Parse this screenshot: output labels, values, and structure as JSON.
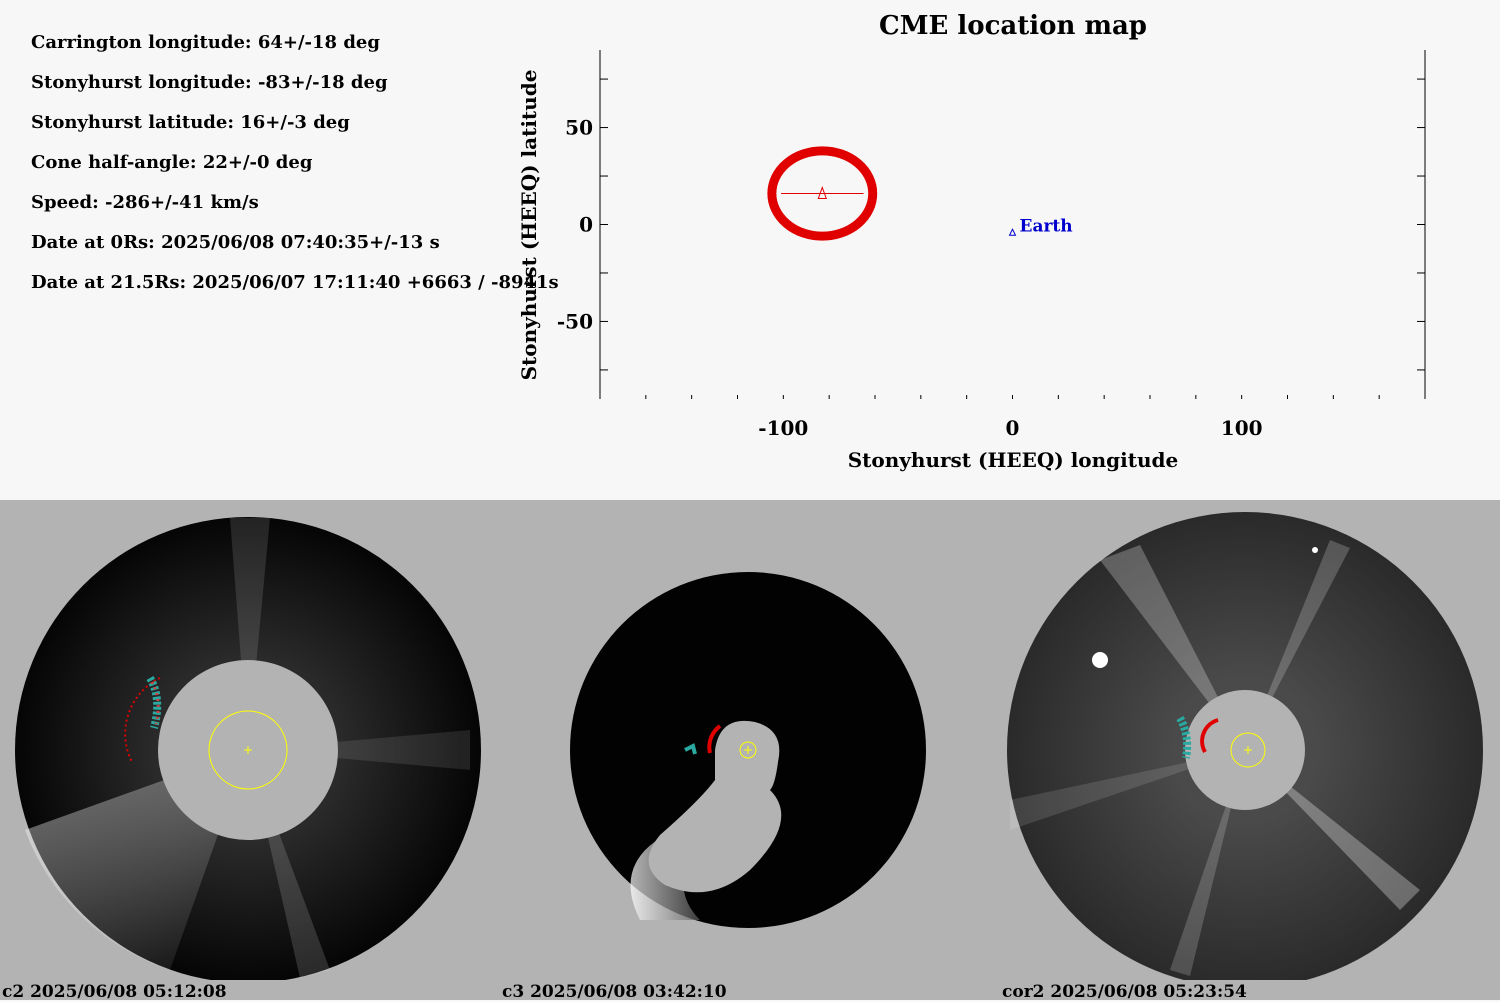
{
  "params": [
    "Carrington longitude: 64+/-18 deg",
    "Stonyhurst longitude: -83+/-18 deg",
    "Stonyhurst latitude: 16+/-3 deg",
    "Cone half-angle: 22+/-0 deg",
    "Speed: -286+/-41 km/s",
    "Date at 0Rs: 2025/06/08 07:40:35+/-13 s",
    "Date at 21.5Rs: 2025/06/07 17:11:40 +6663 / -8941s"
  ],
  "chart_data": {
    "type": "scatter",
    "title": "CME location map",
    "xlabel": "Stonyhurst (HEEQ) longitude",
    "ylabel": "Stonyhurst (HEEQ) latitude",
    "xlim": [
      -180,
      180
    ],
    "ylim": [
      -90,
      90
    ],
    "xticks": [
      -100,
      0,
      100
    ],
    "xtick_labels": [
      "-100",
      "0",
      "100"
    ],
    "yticks": [
      50,
      0,
      -50
    ],
    "ytick_labels": [
      "50",
      "0",
      "-50"
    ],
    "cme": {
      "lon": -83,
      "lat": 16,
      "lon_err": 18,
      "lat_err": 3,
      "half_angle": 22,
      "color": "#e00000"
    },
    "earth": {
      "lon": 0,
      "lat": -4,
      "label": "Earth",
      "color": "#0000cc"
    }
  },
  "panels": [
    {
      "caption": "c2 2025/06/08 05:12:08"
    },
    {
      "caption": "c3 2025/06/08 03:42:10"
    },
    {
      "caption": "cor2 2025/06/08 05:23:54"
    }
  ]
}
